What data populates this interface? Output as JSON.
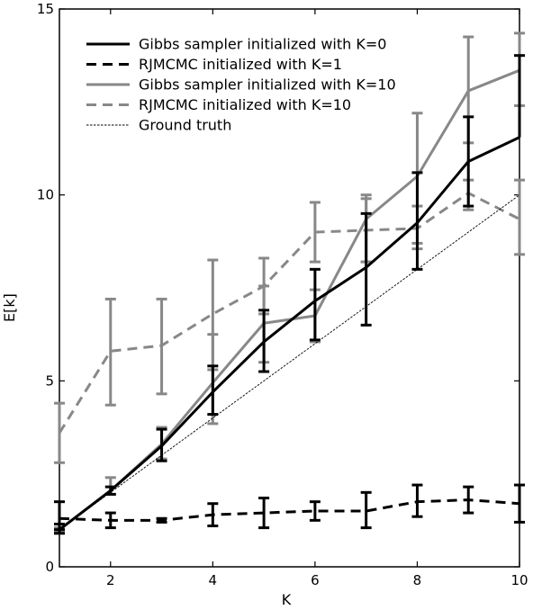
{
  "chart_data": {
    "type": "line",
    "xlabel": "K",
    "ylabel": "E[k]",
    "xlim": [
      1,
      10
    ],
    "ylim": [
      0,
      15
    ],
    "xticks": [
      2,
      4,
      6,
      8,
      10
    ],
    "yticks": [
      0,
      5,
      10,
      15
    ],
    "legend_position": "top-left",
    "x": [
      1,
      2,
      3,
      4,
      5,
      6,
      7,
      8,
      9,
      10
    ],
    "series": [
      {
        "name": "Gibbs sampler initialized with K=0",
        "color": "#000000",
        "dash": "solid",
        "values": [
          1.0,
          2.05,
          3.25,
          4.7,
          6.05,
          7.15,
          8.05,
          9.25,
          10.9,
          11.55
        ],
        "error_low": [
          0.9,
          1.95,
          2.85,
          4.1,
          5.25,
          6.1,
          6.5,
          8.0,
          9.7,
          null
        ],
        "error_high": [
          1.15,
          2.15,
          3.7,
          5.4,
          6.9,
          8.0,
          9.5,
          10.6,
          12.1,
          13.75
        ]
      },
      {
        "name": "RJMCMC initialized with K=1",
        "color": "#000000",
        "dash": "dashed",
        "values": [
          1.3,
          1.25,
          1.25,
          1.4,
          1.45,
          1.5,
          1.5,
          1.75,
          1.8,
          1.7
        ],
        "error_low": [
          1.0,
          1.05,
          1.2,
          1.1,
          1.05,
          1.25,
          1.05,
          1.35,
          1.45,
          1.2
        ],
        "error_high": [
          1.75,
          1.45,
          1.3,
          1.7,
          1.85,
          1.75,
          2.0,
          2.2,
          2.15,
          2.2
        ]
      },
      {
        "name": "Gibbs sampler initialized with K=10",
        "color": "#888888",
        "dash": "solid",
        "values": [
          1.0,
          2.05,
          3.3,
          4.95,
          6.55,
          6.75,
          9.35,
          10.5,
          12.8,
          13.35
        ],
        "error_low": [
          0.95,
          1.95,
          2.9,
          3.85,
          5.5,
          6.05,
          8.2,
          8.7,
          11.4,
          12.4
        ],
        "error_high": [
          1.05,
          2.4,
          3.75,
          6.25,
          7.55,
          7.45,
          10.0,
          12.2,
          14.25,
          14.35
        ]
      },
      {
        "name": "RJMCMC initialized with K=10",
        "color": "#888888",
        "dash": "dashed",
        "values": [
          3.6,
          5.8,
          5.95,
          6.8,
          7.55,
          9.0,
          9.05,
          9.1,
          10.05,
          9.35
        ],
        "error_low": [
          2.8,
          4.35,
          4.65,
          5.3,
          6.8,
          8.2,
          8.2,
          8.55,
          9.6,
          8.4
        ],
        "error_high": [
          4.4,
          7.2,
          7.2,
          8.25,
          8.3,
          9.8,
          9.9,
          9.7,
          10.4,
          10.4
        ]
      },
      {
        "name": "Ground truth",
        "color": "#000000",
        "dash": "dotted",
        "values": [
          1,
          2,
          3,
          4,
          5,
          6,
          7,
          8,
          9,
          10
        ]
      }
    ]
  }
}
